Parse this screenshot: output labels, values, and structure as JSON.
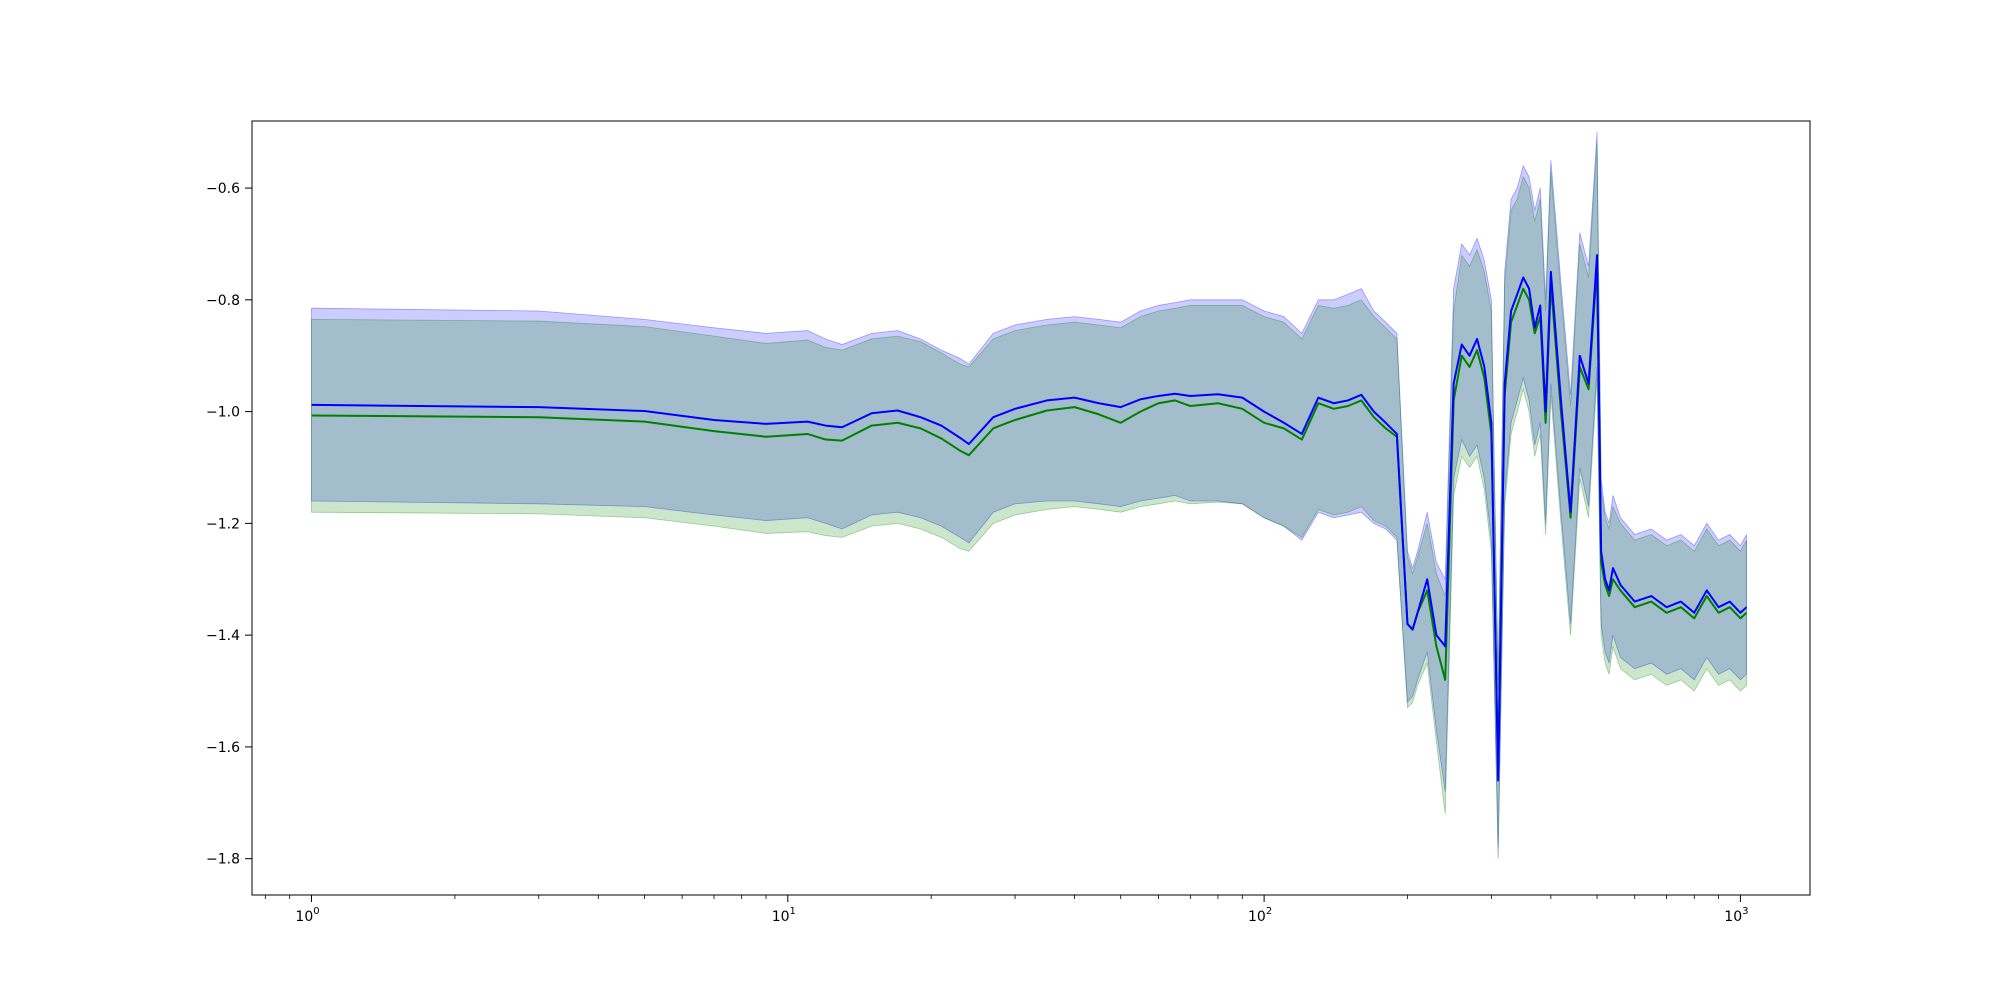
{
  "chart_data": {
    "type": "line",
    "title": "",
    "xlabel": "",
    "ylabel": "",
    "xscale": "log",
    "xlim": [
      0.75,
      1400
    ],
    "ylim": [
      -1.865,
      -0.48
    ],
    "grid": false,
    "legend": "none",
    "x_tick_labels": [
      {
        "base": "10",
        "exp": "0",
        "value": 1
      },
      {
        "base": "10",
        "exp": "1",
        "value": 10
      },
      {
        "base": "10",
        "exp": "2",
        "value": 100
      },
      {
        "base": "10",
        "exp": "3",
        "value": 1000
      }
    ],
    "y_tick_labels": [
      {
        "label": "−0.6",
        "value": -0.6
      },
      {
        "label": "−0.8",
        "value": -0.8
      },
      {
        "label": "−1.0",
        "value": -1.0
      },
      {
        "label": "−1.2",
        "value": -1.2
      },
      {
        "label": "−1.4",
        "value": -1.4
      },
      {
        "label": "−1.6",
        "value": -1.6
      },
      {
        "label": "−1.8",
        "value": -1.8
      }
    ],
    "series": [
      {
        "color": "#0000ff",
        "band_color": "#0000ff",
        "band_opacity": 0.2,
        "x": [
          1,
          3,
          5,
          7,
          9,
          11,
          12,
          13,
          15,
          17,
          19,
          21,
          23,
          24,
          27,
          30,
          35,
          40,
          45,
          50,
          55,
          60,
          65,
          70,
          80,
          90,
          100,
          110,
          120,
          130,
          140,
          150,
          160,
          170,
          180,
          190,
          200,
          205,
          210,
          220,
          230,
          240,
          250,
          260,
          270,
          280,
          290,
          300,
          310,
          320,
          330,
          340,
          350,
          360,
          370,
          380,
          390,
          400,
          420,
          440,
          460,
          480,
          500,
          510,
          520,
          530,
          540,
          560,
          600,
          650,
          700,
          750,
          800,
          850,
          900,
          950,
          1000,
          1030
        ],
        "y": [
          -0.988,
          -0.992,
          -0.999,
          -1.015,
          -1.022,
          -1.018,
          -1.025,
          -1.028,
          -1.003,
          -0.998,
          -1.01,
          -1.025,
          -1.047,
          -1.058,
          -1.01,
          -0.995,
          -0.98,
          -0.975,
          -0.985,
          -0.992,
          -0.978,
          -0.972,
          -0.968,
          -0.972,
          -0.969,
          -0.975,
          -1.0,
          -1.02,
          -1.04,
          -0.975,
          -0.985,
          -0.98,
          -0.97,
          -1.0,
          -1.02,
          -1.04,
          -1.38,
          -1.39,
          -1.36,
          -1.3,
          -1.4,
          -1.42,
          -0.95,
          -0.88,
          -0.9,
          -0.87,
          -0.92,
          -1.02,
          -1.66,
          -0.95,
          -0.82,
          -0.79,
          -0.76,
          -0.78,
          -0.85,
          -0.81,
          -1.0,
          -0.75,
          -0.98,
          -1.18,
          -0.9,
          -0.95,
          -0.72,
          -1.25,
          -1.3,
          -1.32,
          -1.28,
          -1.31,
          -1.34,
          -1.33,
          -1.35,
          -1.34,
          -1.36,
          -1.32,
          -1.35,
          -1.34,
          -1.36,
          -1.35
        ],
        "upper": [
          -0.815,
          -0.82,
          -0.835,
          -0.85,
          -0.86,
          -0.855,
          -0.87,
          -0.88,
          -0.86,
          -0.855,
          -0.87,
          -0.89,
          -0.905,
          -0.915,
          -0.86,
          -0.845,
          -0.835,
          -0.83,
          -0.835,
          -0.84,
          -0.82,
          -0.81,
          -0.805,
          -0.8,
          -0.8,
          -0.8,
          -0.82,
          -0.83,
          -0.86,
          -0.8,
          -0.8,
          -0.79,
          -0.78,
          -0.82,
          -0.84,
          -0.86,
          -1.25,
          -1.28,
          -1.25,
          -1.18,
          -1.27,
          -1.3,
          -0.78,
          -0.7,
          -0.72,
          -0.69,
          -0.73,
          -0.8,
          -1.48,
          -0.75,
          -0.62,
          -0.6,
          -0.56,
          -0.58,
          -0.64,
          -0.6,
          -0.8,
          -0.55,
          -0.77,
          -0.97,
          -0.68,
          -0.74,
          -0.5,
          -1.12,
          -1.18,
          -1.2,
          -1.15,
          -1.19,
          -1.22,
          -1.21,
          -1.23,
          -1.22,
          -1.24,
          -1.2,
          -1.23,
          -1.22,
          -1.24,
          -1.22
        ],
        "lower": [
          -1.16,
          -1.165,
          -1.17,
          -1.185,
          -1.195,
          -1.19,
          -1.2,
          -1.21,
          -1.185,
          -1.18,
          -1.19,
          -1.205,
          -1.225,
          -1.235,
          -1.18,
          -1.165,
          -1.16,
          -1.16,
          -1.165,
          -1.17,
          -1.16,
          -1.155,
          -1.15,
          -1.16,
          -1.16,
          -1.165,
          -1.19,
          -1.205,
          -1.23,
          -1.18,
          -1.19,
          -1.185,
          -1.18,
          -1.2,
          -1.21,
          -1.23,
          -1.52,
          -1.51,
          -1.48,
          -1.43,
          -1.57,
          -1.68,
          -1.12,
          -1.05,
          -1.08,
          -1.06,
          -1.12,
          -1.23,
          -1.8,
          -1.15,
          -1.02,
          -0.98,
          -0.94,
          -0.98,
          -1.06,
          -1.02,
          -1.2,
          -0.95,
          -1.18,
          -1.38,
          -1.1,
          -1.17,
          -0.92,
          -1.38,
          -1.43,
          -1.45,
          -1.4,
          -1.44,
          -1.46,
          -1.45,
          -1.47,
          -1.46,
          -1.48,
          -1.44,
          -1.47,
          -1.46,
          -1.48,
          -1.47
        ]
      },
      {
        "color": "#008000",
        "band_color": "#008000",
        "band_opacity": 0.2,
        "x": [
          1,
          3,
          5,
          7,
          9,
          11,
          12,
          13,
          15,
          17,
          19,
          21,
          23,
          24,
          27,
          30,
          35,
          40,
          45,
          50,
          55,
          60,
          65,
          70,
          80,
          90,
          100,
          110,
          120,
          130,
          140,
          150,
          160,
          170,
          180,
          190,
          200,
          205,
          210,
          220,
          230,
          240,
          250,
          260,
          270,
          280,
          290,
          300,
          310,
          320,
          330,
          340,
          350,
          360,
          370,
          380,
          390,
          400,
          420,
          440,
          460,
          480,
          500,
          510,
          520,
          530,
          540,
          560,
          600,
          650,
          700,
          750,
          800,
          850,
          900,
          950,
          1000,
          1030
        ],
        "y": [
          -1.007,
          -1.01,
          -1.018,
          -1.035,
          -1.045,
          -1.04,
          -1.05,
          -1.052,
          -1.025,
          -1.02,
          -1.03,
          -1.048,
          -1.07,
          -1.078,
          -1.03,
          -1.015,
          -0.998,
          -0.992,
          -1.005,
          -1.02,
          -1.0,
          -0.985,
          -0.98,
          -0.99,
          -0.985,
          -0.995,
          -1.02,
          -1.03,
          -1.05,
          -0.985,
          -0.995,
          -0.99,
          -0.98,
          -1.01,
          -1.03,
          -1.045,
          -1.38,
          -1.39,
          -1.36,
          -1.32,
          -1.42,
          -1.48,
          -0.98,
          -0.9,
          -0.92,
          -0.89,
          -0.94,
          -1.04,
          -1.64,
          -0.97,
          -0.84,
          -0.81,
          -0.78,
          -0.8,
          -0.86,
          -0.83,
          -1.02,
          -0.77,
          -1.0,
          -1.19,
          -0.92,
          -0.96,
          -0.74,
          -1.27,
          -1.31,
          -1.33,
          -1.3,
          -1.32,
          -1.35,
          -1.34,
          -1.36,
          -1.35,
          -1.37,
          -1.33,
          -1.36,
          -1.35,
          -1.37,
          -1.36
        ],
        "upper": [
          -0.835,
          -0.838,
          -0.848,
          -0.865,
          -0.878,
          -0.872,
          -0.885,
          -0.89,
          -0.87,
          -0.865,
          -0.875,
          -0.895,
          -0.915,
          -0.92,
          -0.87,
          -0.855,
          -0.845,
          -0.84,
          -0.845,
          -0.85,
          -0.83,
          -0.82,
          -0.815,
          -0.81,
          -0.81,
          -0.81,
          -0.83,
          -0.84,
          -0.87,
          -0.81,
          -0.815,
          -0.81,
          -0.8,
          -0.83,
          -0.85,
          -0.87,
          -1.26,
          -1.29,
          -1.26,
          -1.2,
          -1.29,
          -1.33,
          -0.82,
          -0.72,
          -0.74,
          -0.71,
          -0.75,
          -0.82,
          -1.5,
          -0.77,
          -0.64,
          -0.62,
          -0.58,
          -0.6,
          -0.66,
          -0.62,
          -0.82,
          -0.57,
          -0.79,
          -0.99,
          -0.7,
          -0.76,
          -0.52,
          -1.14,
          -1.19,
          -1.21,
          -1.17,
          -1.2,
          -1.23,
          -1.22,
          -1.24,
          -1.23,
          -1.25,
          -1.21,
          -1.24,
          -1.23,
          -1.25,
          -1.23
        ],
        "lower": [
          -1.18,
          -1.183,
          -1.19,
          -1.205,
          -1.218,
          -1.215,
          -1.222,
          -1.225,
          -1.205,
          -1.2,
          -1.21,
          -1.225,
          -1.245,
          -1.25,
          -1.2,
          -1.185,
          -1.175,
          -1.17,
          -1.175,
          -1.18,
          -1.17,
          -1.165,
          -1.16,
          -1.165,
          -1.162,
          -1.165,
          -1.19,
          -1.205,
          -1.225,
          -1.175,
          -1.185,
          -1.18,
          -1.17,
          -1.195,
          -1.205,
          -1.225,
          -1.53,
          -1.52,
          -1.49,
          -1.45,
          -1.59,
          -1.72,
          -1.15,
          -1.08,
          -1.1,
          -1.08,
          -1.14,
          -1.25,
          -1.78,
          -1.17,
          -1.04,
          -1.0,
          -0.96,
          -1.0,
          -1.08,
          -1.04,
          -1.22,
          -0.97,
          -1.2,
          -1.4,
          -1.12,
          -1.19,
          -0.94,
          -1.4,
          -1.45,
          -1.47,
          -1.42,
          -1.46,
          -1.48,
          -1.47,
          -1.49,
          -1.48,
          -1.5,
          -1.46,
          -1.49,
          -1.48,
          -1.5,
          -1.49
        ]
      }
    ]
  }
}
